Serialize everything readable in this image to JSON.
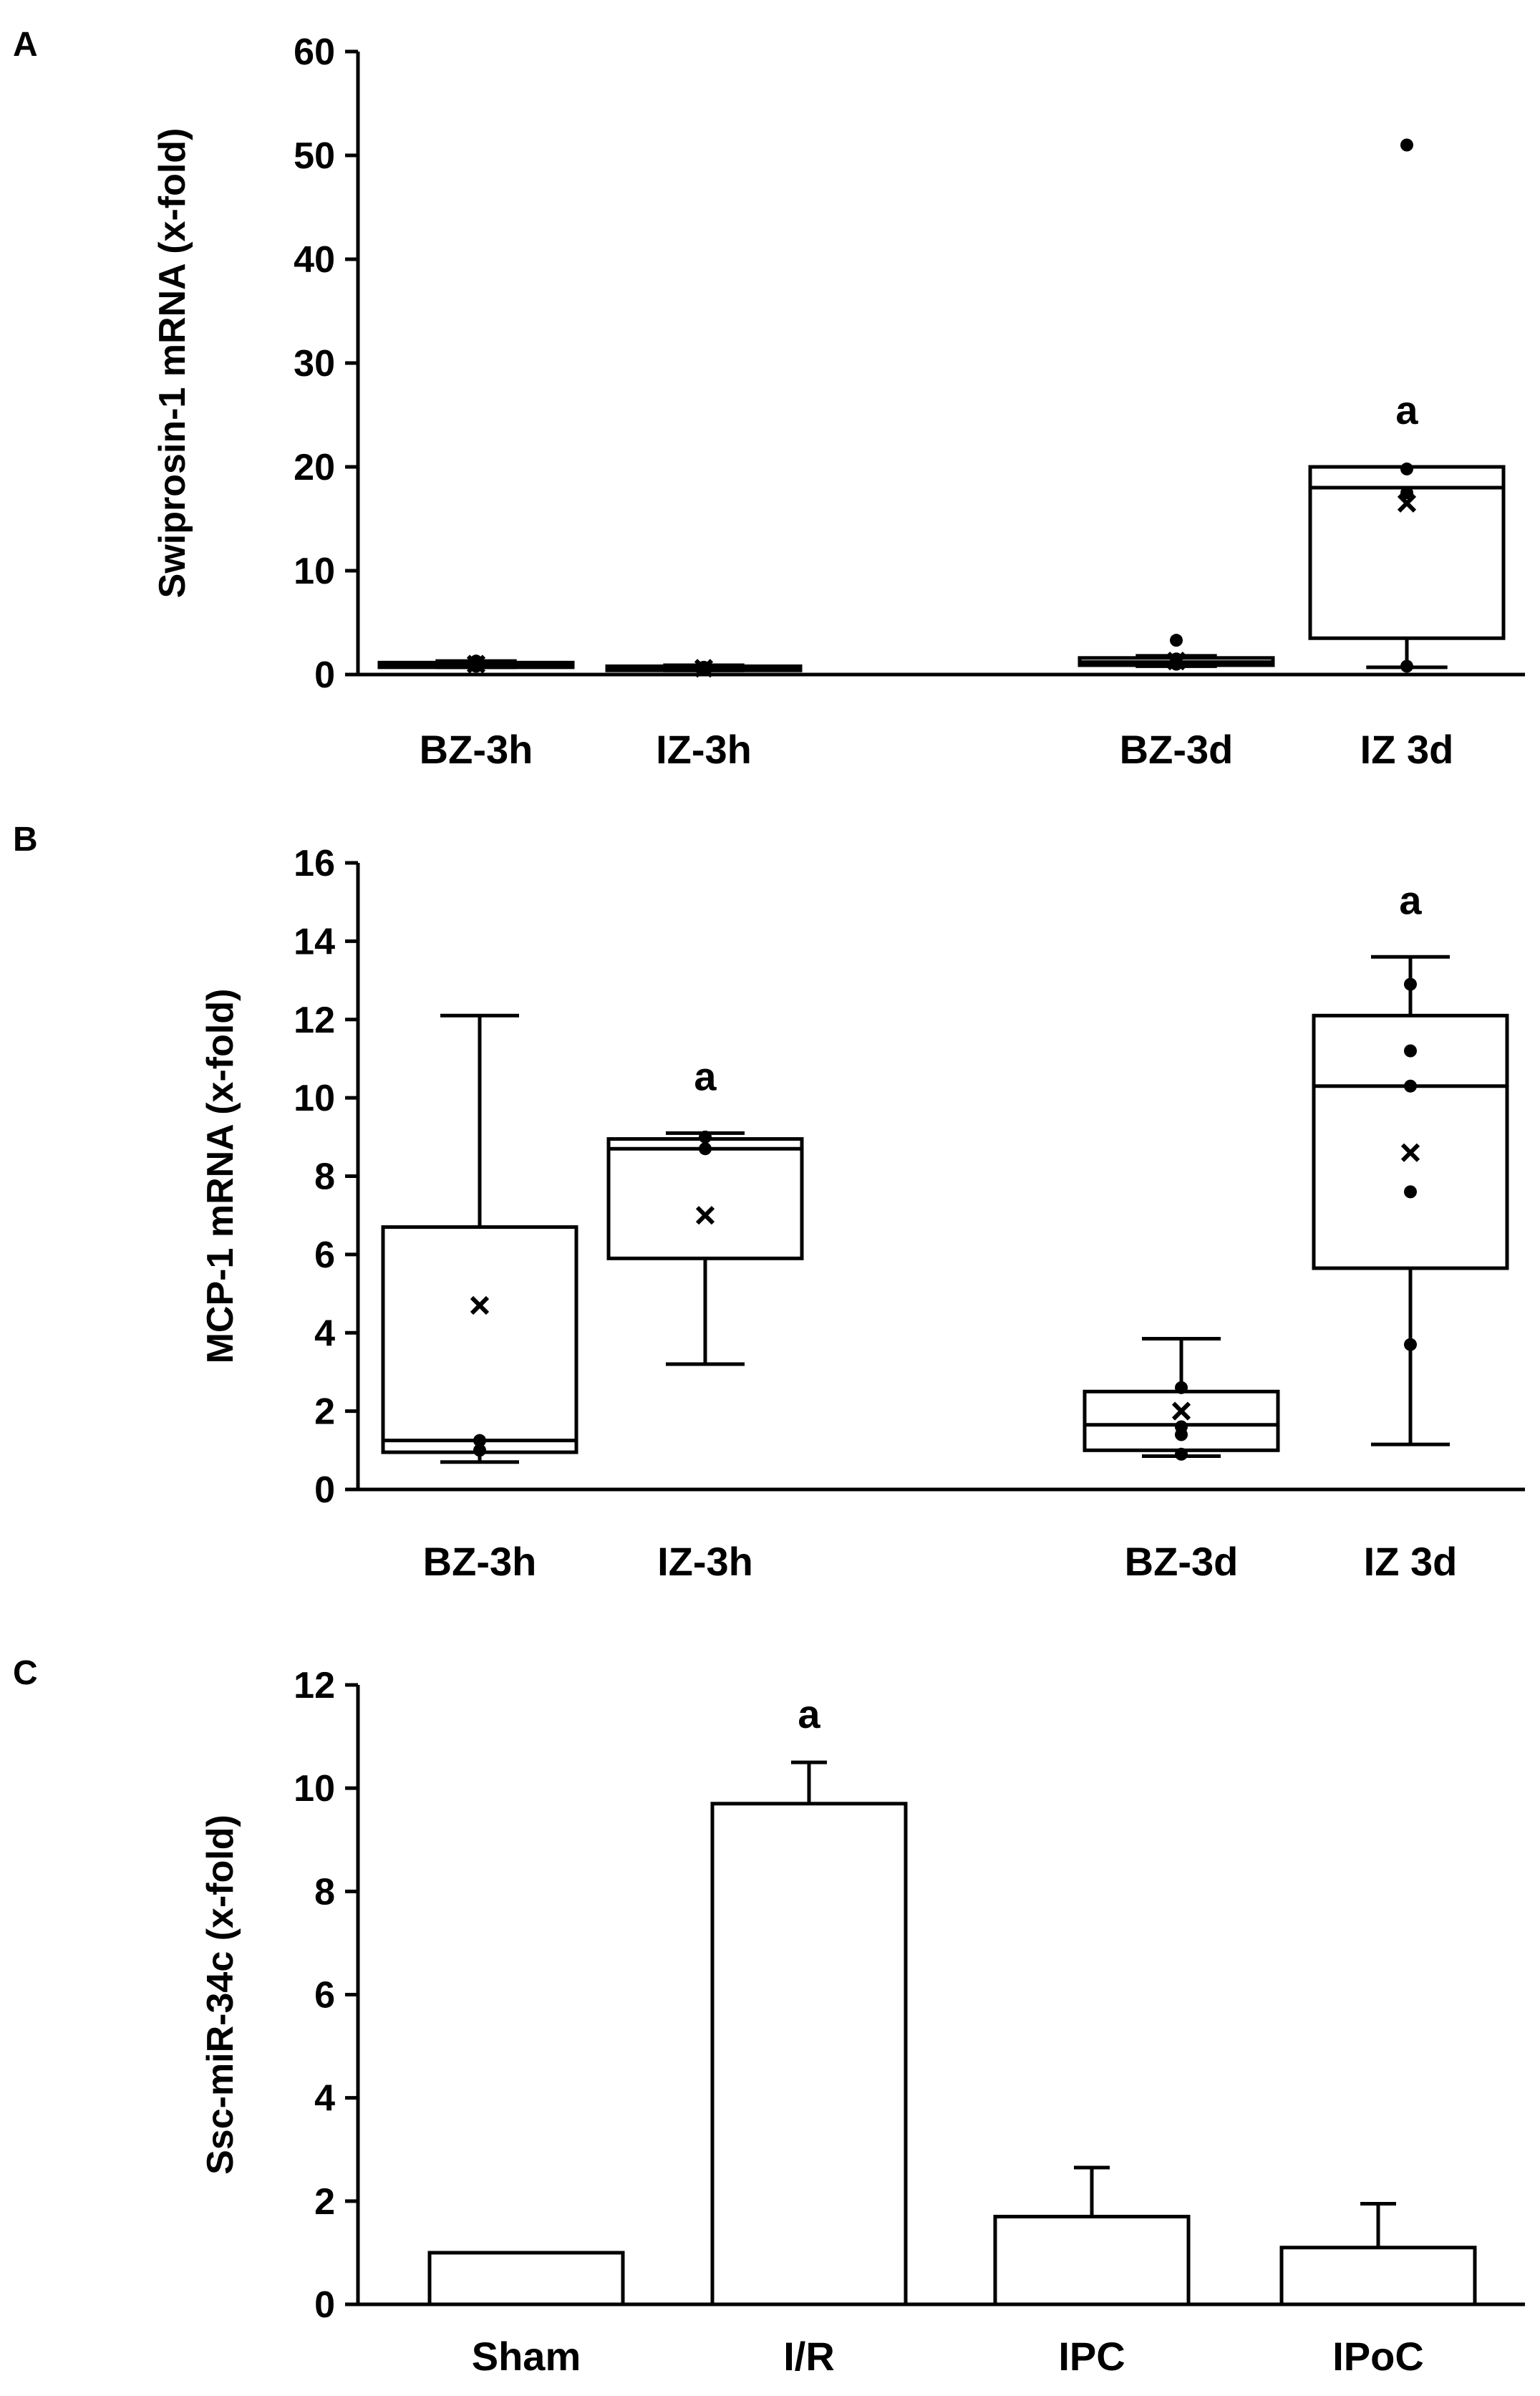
{
  "chart_data": [
    {
      "panel": "A",
      "type": "box",
      "ylabel": "Swiprosin-1 mRNA (x-fold)",
      "ylim": [
        0,
        60
      ],
      "yticks": [
        0,
        10,
        20,
        30,
        40,
        50,
        60
      ],
      "categories": [
        "BZ-3h",
        "IZ-3h",
        "BZ-3d",
        "IZ 3d"
      ],
      "boxes": [
        {
          "category": "BZ-3h",
          "min": 0.7,
          "q1": 0.7,
          "median": 0.95,
          "q3": 1.15,
          "max": 1.3,
          "mean": 1.0,
          "points": [
            0.8,
            1.1,
            1.3
          ],
          "significance": ""
        },
        {
          "category": "IZ-3h",
          "min": 0.4,
          "q1": 0.4,
          "median": 0.6,
          "q3": 0.8,
          "max": 0.9,
          "mean": 0.6,
          "points": [
            0.5,
            0.7
          ],
          "significance": ""
        },
        {
          "category": "BZ-3d",
          "min": 0.8,
          "q1": 0.9,
          "median": 1.2,
          "q3": 1.6,
          "max": 1.8,
          "mean": 1.3,
          "points": [
            1.0,
            1.5,
            3.3
          ],
          "significance": ""
        },
        {
          "category": "IZ 3d",
          "min": 0.7,
          "q1": 3.5,
          "median": 18.0,
          "q3": 20.0,
          "max": 20.0,
          "mean": 16.5,
          "points": [
            0.8,
            17.5,
            19.8,
            51.0
          ],
          "significance": "a"
        }
      ]
    },
    {
      "panel": "B",
      "type": "box",
      "ylabel": "MCP-1 mRNA (x-fold)",
      "ylim": [
        0,
        16
      ],
      "yticks": [
        0,
        2,
        4,
        6,
        8,
        10,
        12,
        14,
        16
      ],
      "categories": [
        "BZ-3h",
        "IZ-3h",
        "BZ-3d",
        "IZ 3d"
      ],
      "boxes": [
        {
          "category": "BZ-3h",
          "min": 0.7,
          "q1": 0.95,
          "median": 1.25,
          "q3": 6.7,
          "max": 12.1,
          "mean": 4.7,
          "points": [
            1.0,
            1.25
          ],
          "significance": ""
        },
        {
          "category": "IZ-3h",
          "min": 3.2,
          "q1": 5.9,
          "median": 8.7,
          "q3": 8.95,
          "max": 9.1,
          "mean": 7.0,
          "points": [
            8.7,
            9.0
          ],
          "significance": "a"
        },
        {
          "category": "BZ-3d",
          "min": 0.85,
          "q1": 1.0,
          "median": 1.65,
          "q3": 2.5,
          "max": 3.85,
          "mean": 2.0,
          "points": [
            0.9,
            1.4,
            1.6,
            2.6
          ],
          "significance": ""
        },
        {
          "category": "IZ 3d",
          "min": 1.15,
          "q1": 5.65,
          "median": 10.3,
          "q3": 12.1,
          "max": 13.6,
          "mean": 8.6,
          "points": [
            3.7,
            7.6,
            10.3,
            11.2,
            12.9
          ],
          "significance": "a"
        }
      ]
    },
    {
      "panel": "C",
      "type": "bar",
      "ylabel": "Ssc-miR-34c (x-fold)",
      "ylim": [
        0,
        12
      ],
      "yticks": [
        0,
        2,
        4,
        6,
        8,
        10,
        12
      ],
      "categories": [
        "Sham",
        "I/R",
        "IPC",
        "IPoC"
      ],
      "values": [
        1.0,
        9.7,
        1.7,
        1.1
      ],
      "errors": [
        0.0,
        0.8,
        0.95,
        0.85
      ],
      "significance": [
        "",
        "a",
        "",
        ""
      ]
    }
  ]
}
